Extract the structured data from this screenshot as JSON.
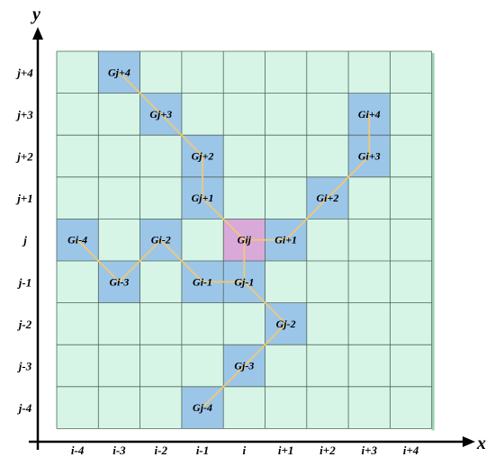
{
  "axes": {
    "x_title": "x",
    "y_title": "y",
    "x_ticks": [
      "i-4",
      "i-3",
      "i-2",
      "i-1",
      "i",
      "i+1",
      "i+2",
      "i+3",
      "i+4"
    ],
    "y_ticks": [
      "j+4",
      "j+3",
      "j+2",
      "j+1",
      "j",
      "j-1",
      "j-2",
      "j-3",
      "j-4"
    ]
  },
  "grid": {
    "columns": 9,
    "rows": 9,
    "background_color": "#d6f5e6",
    "line_color": "#4d6659"
  },
  "colors": {
    "highlight": "#9cc6e8",
    "center": "#d9a9d9",
    "path": "#f0c878",
    "side_shade": "#9ed3b8"
  },
  "center_cell": {
    "col": 4,
    "row": 4,
    "label": "Gij"
  },
  "cells": [
    {
      "col": 1,
      "row": 0,
      "label": "Gj+4"
    },
    {
      "col": 2,
      "row": 1,
      "label": "Gj+3"
    },
    {
      "col": 3,
      "row": 2,
      "label": "Gj+2"
    },
    {
      "col": 3,
      "row": 3,
      "label": "Gj+1"
    },
    {
      "col": 7,
      "row": 1,
      "label": "Gi+4"
    },
    {
      "col": 7,
      "row": 2,
      "label": "Gi+3"
    },
    {
      "col": 6,
      "row": 3,
      "label": "Gi+2"
    },
    {
      "col": 5,
      "row": 4,
      "label": "Gi+1"
    },
    {
      "col": 0,
      "row": 4,
      "label": "Gi-4"
    },
    {
      "col": 2,
      "row": 4,
      "label": "Gi-2"
    },
    {
      "col": 1,
      "row": 5,
      "label": "Gi-3"
    },
    {
      "col": 3,
      "row": 5,
      "label": "Gi-1"
    },
    {
      "col": 4,
      "row": 5,
      "label": "Gj-1"
    },
    {
      "col": 5,
      "row": 6,
      "label": "Gj-2"
    },
    {
      "col": 4,
      "row": 7,
      "label": "Gj-3"
    },
    {
      "col": 3,
      "row": 8,
      "label": "Gj-4"
    }
  ],
  "paths": [
    [
      "Gj+4",
      "Gj+3",
      "Gj+2",
      "Gj+1",
      "Gij"
    ],
    [
      "Gi+4",
      "Gi+3",
      "Gi+2",
      "Gi+1",
      "Gij"
    ],
    [
      "Gi-4",
      "Gi-3",
      "Gi-2",
      "Gi-1",
      "Gj-1",
      "Gij"
    ],
    [
      "Gj-4",
      "Gj-3",
      "Gj-2",
      "Gj-1"
    ]
  ]
}
